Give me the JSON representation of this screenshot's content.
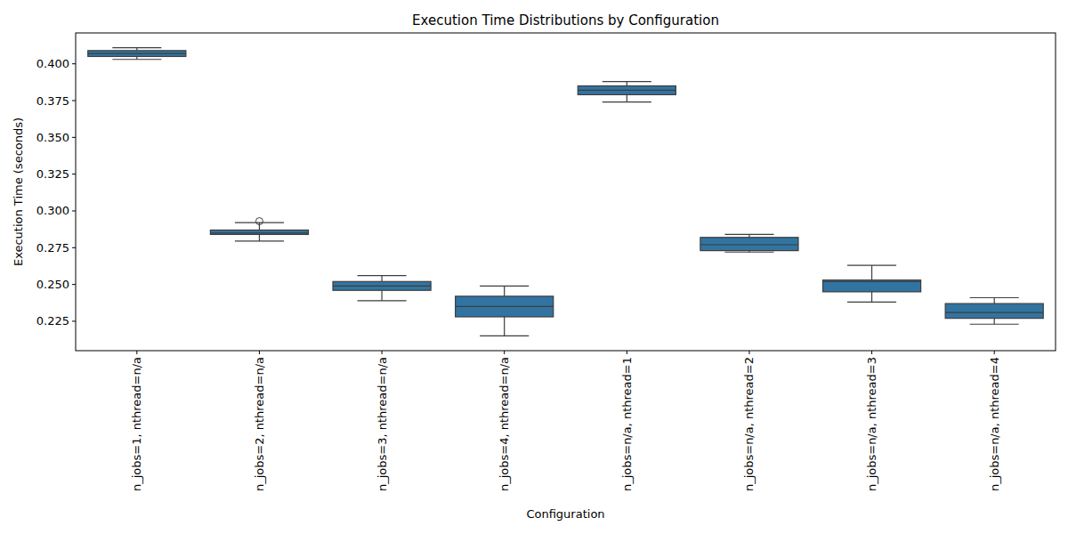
{
  "chart_data": {
    "type": "box",
    "title": "Execution Time Distributions by Configuration",
    "x_label": "Configuration",
    "y_label": "Execution Time (seconds)",
    "categories": [
      "n_jobs=1, nthread=n/a",
      "n_jobs=2, nthread=n/a",
      "n_jobs=3, nthread=n/a",
      "n_jobs=4, nthread=n/a",
      "n_jobs=n/a, nthread=1",
      "n_jobs=n/a, nthread=2",
      "n_jobs=n/a, nthread=3",
      "n_jobs=n/a, nthread=4"
    ],
    "whisker_low": [
      0.403,
      0.2795,
      0.239,
      0.215,
      0.374,
      0.272,
      0.238,
      0.223
    ],
    "q1": [
      0.405,
      0.284,
      0.246,
      0.228,
      0.379,
      0.273,
      0.245,
      0.227
    ],
    "median": [
      0.407,
      0.285,
      0.249,
      0.235,
      0.382,
      0.277,
      0.252,
      0.231
    ],
    "q3": [
      0.409,
      0.287,
      0.252,
      0.242,
      0.385,
      0.282,
      0.253,
      0.237
    ],
    "whisker_high": [
      0.411,
      0.292,
      0.256,
      0.249,
      0.388,
      0.284,
      0.263,
      0.241
    ],
    "outliers": [
      [],
      [
        0.293
      ],
      [],
      [],
      [],
      [],
      [],
      []
    ],
    "color": "#3274a1",
    "ylim": [
      0.205,
      0.421
    ],
    "yticks": [
      0.225,
      {
        "value": 0.25,
        "label": "0.250"
      },
      0.275,
      {
        "value": 0.3,
        "label": "0.300"
      },
      0.325,
      {
        "value": 0.35,
        "label": "0.350"
      },
      0.375,
      {
        "value": 0.4,
        "label": "0.400"
      }
    ],
    "grid": false
  }
}
